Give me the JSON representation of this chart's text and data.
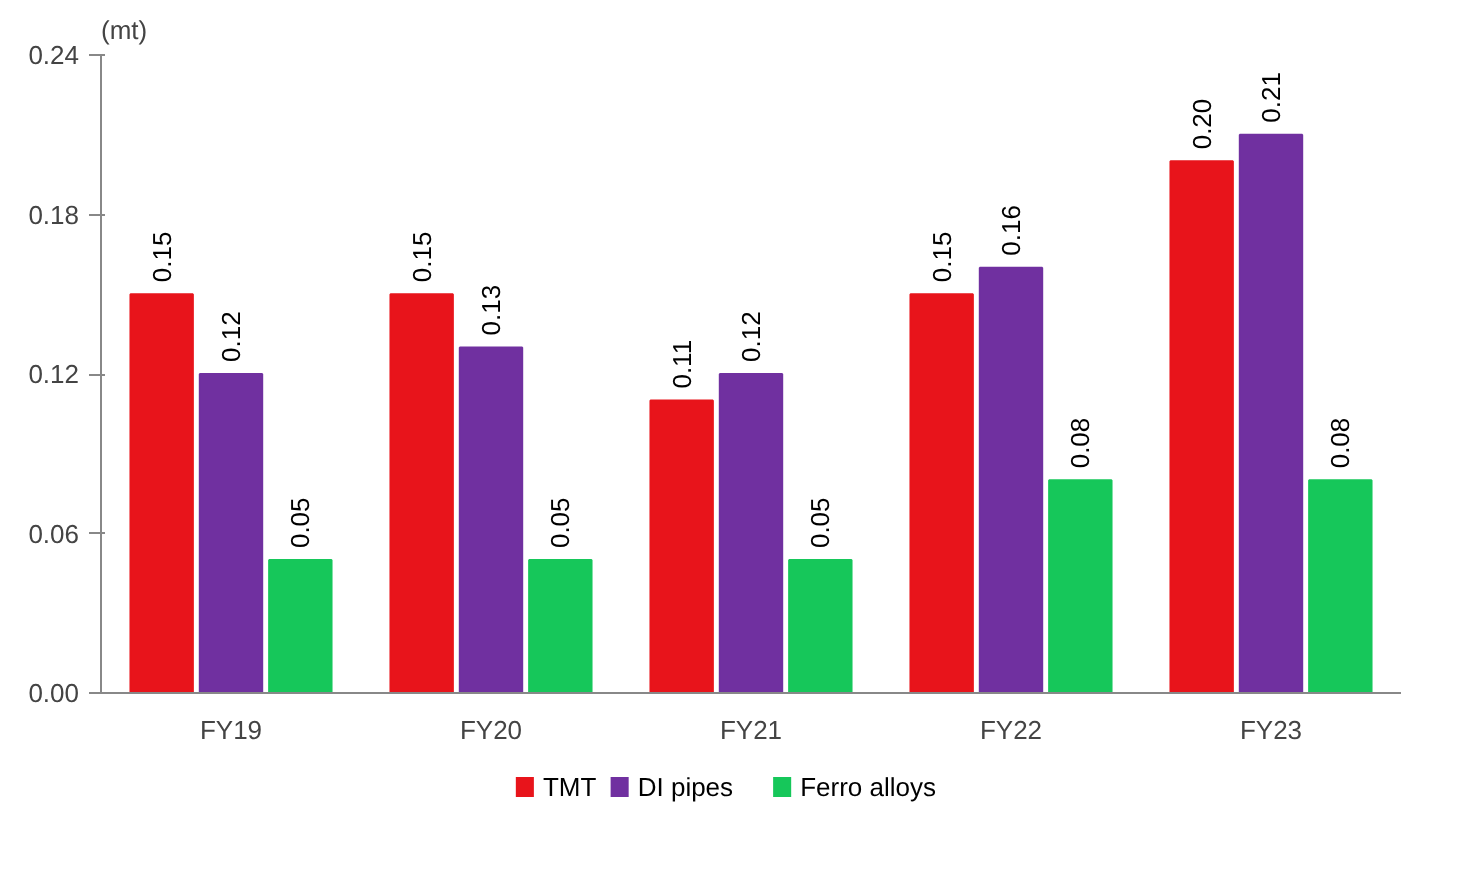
{
  "chart_data": {
    "type": "bar",
    "ylabel": "(mt)",
    "categories": [
      "FY19",
      "FY20",
      "FY21",
      "FY22",
      "FY23"
    ],
    "series": [
      {
        "name": "TMT",
        "color": "#e8141b",
        "values": [
          0.15,
          0.15,
          0.11,
          0.15,
          0.2
        ],
        "value_labels": [
          "0.15",
          "0.15",
          "0.11",
          "0.15",
          "0.20"
        ]
      },
      {
        "name": "DI pipes",
        "color": "#7030a0",
        "values": [
          0.12,
          0.13,
          0.12,
          0.16,
          0.21
        ],
        "value_labels": [
          "0.12",
          "0.13",
          "0.12",
          "0.16",
          "0.21"
        ]
      },
      {
        "name": "Ferro alloys",
        "color": "#16c75a",
        "values": [
          0.05,
          0.05,
          0.05,
          0.08,
          0.08
        ],
        "value_labels": [
          "0.05",
          "0.05",
          "0.05",
          "0.08",
          "0.08"
        ]
      }
    ],
    "ylim": [
      0,
      0.24
    ],
    "yticks": [
      {
        "value": 0,
        "label": "0.00"
      },
      0.06,
      0.12,
      0.18,
      0.24
    ],
    "grid": false,
    "legend": "bottom"
  }
}
